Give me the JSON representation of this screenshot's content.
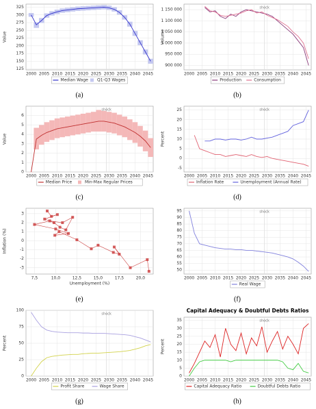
{
  "chart_data": [
    {
      "type": "line",
      "caption": "(a)",
      "ylabel": "Value",
      "grid": true,
      "annotation": {
        "text": "shock",
        "x": 2029
      },
      "xlim": [
        1998,
        2047
      ],
      "xticks": [
        2000,
        2005,
        2010,
        2015,
        2020,
        2025,
        2030,
        2035,
        2040,
        2045
      ],
      "ylim": [
        122,
        335
      ],
      "yticks": [
        125,
        150,
        175,
        200,
        225,
        250,
        275,
        300,
        325
      ],
      "x": [
        2000,
        2002,
        2004,
        2006,
        2008,
        2010,
        2012,
        2014,
        2016,
        2018,
        2020,
        2022,
        2024,
        2026,
        2028,
        2030,
        2032,
        2034,
        2036,
        2038,
        2040,
        2042,
        2044,
        2046
      ],
      "series": [
        {
          "name": "Median Wage",
          "color": "#3333cc",
          "values": [
            300,
            268,
            282,
            298,
            305,
            310,
            314,
            316,
            318,
            320,
            321,
            322,
            323,
            324,
            325,
            323,
            318,
            308,
            292,
            270,
            240,
            210,
            180,
            150
          ]
        },
        {
          "name": "Q1-Q3 Wages",
          "color": "#c4c8f0",
          "low": [
            294,
            258,
            274,
            291,
            298,
            303,
            307,
            309,
            311,
            313,
            314,
            315,
            316,
            317,
            318,
            316,
            311,
            301,
            285,
            262,
            232,
            202,
            172,
            142
          ],
          "high": [
            306,
            276,
            290,
            305,
            312,
            317,
            321,
            323,
            325,
            327,
            328,
            329,
            330,
            331,
            332,
            330,
            325,
            315,
            299,
            278,
            248,
            218,
            188,
            158
          ]
        }
      ]
    },
    {
      "type": "line",
      "caption": "(b)",
      "ylabel": "Volume",
      "grid": true,
      "annotation": {
        "text": "shock",
        "x": 2029
      },
      "xlim": [
        1998,
        2047
      ],
      "xticks": [
        2000,
        2005,
        2010,
        2015,
        2020,
        2025,
        2030,
        2035,
        2040,
        2045
      ],
      "ylim": [
        880000,
        1175000
      ],
      "yticks": [
        {
          "value": 900000,
          "label": "900 000"
        },
        {
          "value": 950000,
          "label": "950 000"
        },
        {
          "value": 1000000,
          "label": "1 000 000"
        },
        {
          "value": 1050000,
          "label": "1 050 000"
        },
        {
          "value": 1100000,
          "label": "1 100 000"
        },
        {
          "value": 1150000,
          "label": "1 150 000"
        }
      ],
      "x": [
        2006,
        2008,
        2010,
        2012,
        2014,
        2016,
        2018,
        2020,
        2022,
        2024,
        2026,
        2028,
        2030,
        2032,
        2034,
        2036,
        2038,
        2040,
        2042,
        2044,
        2046
      ],
      "series": [
        {
          "name": "Production",
          "color": "#8a3a7a",
          "values": [
            1160000,
            1140000,
            1145000,
            1120000,
            1110000,
            1130000,
            1120000,
            1140000,
            1150000,
            1145000,
            1140000,
            1135000,
            1130000,
            1120000,
            1100000,
            1080000,
            1060000,
            1040000,
            1010000,
            980000,
            900000
          ]
        },
        {
          "name": "Consumption",
          "color": "#e07090",
          "values": [
            1165000,
            1145000,
            1140000,
            1125000,
            1120000,
            1125000,
            1130000,
            1135000,
            1145000,
            1150000,
            1135000,
            1140000,
            1125000,
            1115000,
            1105000,
            1090000,
            1075000,
            1050000,
            1030000,
            1000000,
            930000
          ]
        }
      ]
    },
    {
      "type": "line",
      "caption": "(c)",
      "ylabel": "Value",
      "grid": true,
      "annotation": {
        "text": "shock",
        "x": 2029
      },
      "xlim": [
        1998,
        2047
      ],
      "xticks": [
        2000,
        2005,
        2010,
        2015,
        2020,
        2025,
        2030,
        2035,
        2040,
        2045
      ],
      "ylim": [
        0,
        7
      ],
      "yticks": [
        0,
        1,
        2,
        3,
        4,
        5,
        6
      ],
      "x": [
        2000,
        2002,
        2004,
        2006,
        2008,
        2010,
        2012,
        2014,
        2016,
        2018,
        2020,
        2022,
        2024,
        2026,
        2028,
        2030,
        2032,
        2034,
        2036,
        2038,
        2040,
        2042,
        2044,
        2046
      ],
      "series": [
        {
          "name": "Median Price",
          "color": "#c03030",
          "values": [
            0,
            3.5,
            3.9,
            4.2,
            4.4,
            4.6,
            4.7,
            4.8,
            4.9,
            5.0,
            5.1,
            5.2,
            5.3,
            5.4,
            5.4,
            5.3,
            5.2,
            5.0,
            4.8,
            4.5,
            4.2,
            3.8,
            3.3,
            2.6
          ]
        },
        {
          "name": "Min-Max Regular Prices",
          "color": "#f4b8b8",
          "low": [
            0,
            2.4,
            2.9,
            3.2,
            3.4,
            3.6,
            3.7,
            3.8,
            3.9,
            4.0,
            4.1,
            4.2,
            4.3,
            4.3,
            4.3,
            4.2,
            4.1,
            3.9,
            3.7,
            3.4,
            3.1,
            2.7,
            2.2,
            1.6
          ],
          "high": [
            0,
            4.7,
            5.0,
            5.3,
            5.5,
            5.7,
            5.8,
            5.9,
            6.0,
            6.1,
            6.2,
            6.3,
            6.4,
            6.6,
            6.5,
            6.4,
            6.3,
            6.1,
            5.9,
            5.6,
            5.3,
            4.9,
            4.4,
            3.6
          ]
        }
      ]
    },
    {
      "type": "line",
      "caption": "(d)",
      "ylabel": "Percent",
      "grid": true,
      "annotation": {
        "text": "shock",
        "x": 2029
      },
      "xlim": [
        1998,
        2047
      ],
      "xticks": [
        2000,
        2005,
        2010,
        2015,
        2020,
        2025,
        2030,
        2035,
        2040,
        2045
      ],
      "ylim": [
        -7,
        27
      ],
      "yticks": [
        -5,
        0,
        5,
        10,
        15,
        20,
        25
      ],
      "x": [
        2000,
        2002,
        2004,
        2006,
        2008,
        2010,
        2012,
        2014,
        2016,
        2018,
        2020,
        2022,
        2024,
        2026,
        2028,
        2030,
        2032,
        2034,
        2036,
        2038,
        2040,
        2042,
        2044,
        2046
      ],
      "series": [
        {
          "name": "Inflation Rate",
          "color": "#e06070",
          "values": [
            null,
            12,
            5,
            4,
            3,
            2,
            2,
            1,
            1.5,
            2,
            1.5,
            1,
            2,
            1,
            0.5,
            1,
            0,
            -0.5,
            -1,
            -1.5,
            -2,
            -2.5,
            -3,
            -4
          ]
        },
        {
          "name": "Unemployment (Annual Rate)",
          "color": "#6060dd",
          "values": [
            null,
            null,
            null,
            9,
            9,
            10,
            10,
            9.5,
            10,
            10,
            9.5,
            10,
            11,
            10,
            10,
            10.5,
            11,
            12,
            13,
            14,
            17,
            18,
            19,
            25
          ]
        }
      ]
    },
    {
      "type": "scatter",
      "caption": "(e)",
      "xlabel": "Unemployment (%)",
      "ylabel": "Inflation (%)",
      "grid": true,
      "xlim": [
        6.5,
        21.5
      ],
      "xticks": [
        {
          "value": 7.5,
          "label": "7,5"
        },
        {
          "value": 10,
          "label": "10,0"
        },
        {
          "value": 12.5,
          "label": "12,5"
        },
        {
          "value": 15,
          "label": "15,0"
        },
        {
          "value": 17.5,
          "label": "17,5"
        },
        {
          "value": 20,
          "label": "20,0"
        }
      ],
      "ylim": [
        -3.7,
        3.6
      ],
      "yticks": [
        -3,
        -2,
        -1,
        0,
        1,
        2,
        3
      ],
      "x": [
        9.0,
        9.5,
        10.2,
        8.7,
        9.8,
        10.5,
        11.2,
        12.0,
        10.8,
        9.3,
        7.5,
        10.0,
        11.5,
        9.9,
        10.4,
        12.5,
        14.2,
        15.0,
        16.8,
        17.5,
        16.9,
        18.8,
        20.8,
        21.0
      ],
      "series": [
        {
          "color": "#cc4444",
          "values": [
            3.3,
            2.7,
            2.9,
            2.4,
            2.0,
            1.5,
            1.2,
            2.6,
            2.0,
            2.2,
            1.8,
            1.3,
            0.8,
            0.6,
            1.0,
            0.1,
            -0.9,
            -0.5,
            -1.3,
            -1.5,
            -0.7,
            -3.0,
            -2.1,
            -3.4
          ]
        }
      ]
    },
    {
      "type": "line",
      "caption": "(f)",
      "grid": true,
      "annotation": {
        "text": "shock",
        "x": 2029
      },
      "xlim": [
        1998,
        2047
      ],
      "xticks": [
        2000,
        2005,
        2010,
        2015,
        2020,
        2025,
        2030,
        2035,
        2040,
        2045
      ],
      "ylim": [
        47,
        97
      ],
      "yticks": [
        50,
        55,
        60,
        65,
        70,
        75,
        80,
        85,
        90,
        95
      ],
      "x": [
        2000,
        2002,
        2004,
        2006,
        2008,
        2010,
        2012,
        2014,
        2016,
        2018,
        2020,
        2022,
        2024,
        2026,
        2028,
        2030,
        2032,
        2034,
        2036,
        2038,
        2040,
        2042,
        2044,
        2046
      ],
      "series": [
        {
          "name": "Real Wage",
          "color": "#8080dd",
          "values": [
            95,
            78,
            70,
            69,
            68,
            67,
            66.5,
            66,
            66,
            65.5,
            65.5,
            65,
            65,
            64.5,
            64,
            63.5,
            63,
            62,
            61,
            60,
            58.5,
            56,
            53,
            49
          ]
        }
      ]
    },
    {
      "type": "line",
      "caption": "(g)",
      "ylabel": "Percent",
      "grid": true,
      "annotation": {
        "text": "shock",
        "x": 2029
      },
      "xlim": [
        1998,
        2047
      ],
      "xticks": [
        2000,
        2005,
        2010,
        2015,
        2020,
        2025,
        2030,
        2035,
        2040,
        2045
      ],
      "ylim": [
        0,
        100
      ],
      "yticks": [
        0,
        25,
        50,
        75,
        100
      ],
      "x": [
        2000,
        2002,
        2004,
        2006,
        2008,
        2010,
        2012,
        2014,
        2016,
        2018,
        2020,
        2022,
        2024,
        2026,
        2028,
        2030,
        2032,
        2034,
        2036,
        2038,
        2040,
        2042,
        2044,
        2046
      ],
      "series": [
        {
          "name": "Profit Share",
          "color": "#d2d24a",
          "values": [
            0,
            12,
            22,
            28,
            30,
            31,
            32,
            32.5,
            33,
            33,
            34,
            34.5,
            35,
            35,
            35.5,
            36,
            36.5,
            37,
            38,
            39,
            41,
            43,
            46,
            48
          ]
        },
        {
          "name": "Wage Share",
          "color": "#a9a0e0",
          "values": [
            97,
            85,
            75,
            70,
            68,
            67,
            66.5,
            66,
            66,
            66,
            65.5,
            65.5,
            65,
            65,
            65,
            64.5,
            64,
            63.5,
            63,
            62,
            60,
            58,
            55,
            52
          ]
        }
      ]
    },
    {
      "type": "line",
      "caption": "(h)",
      "title": "Capital Adequacy & Doubtful Debts Ratios",
      "ylabel": "Percent",
      "grid": true,
      "annotation": {
        "text": "shock",
        "x": 2029
      },
      "xlim": [
        1998,
        2047
      ],
      "xticks": [
        2000,
        2005,
        2010,
        2015,
        2020,
        2025,
        2030,
        2035,
        2040,
        2045
      ],
      "ylim": [
        0,
        37
      ],
      "yticks": [
        0,
        5,
        10,
        15,
        20,
        25,
        30,
        35
      ],
      "x": [
        2000,
        2002,
        2004,
        2006,
        2008,
        2010,
        2012,
        2014,
        2016,
        2018,
        2020,
        2022,
        2024,
        2026,
        2028,
        2030,
        2032,
        2034,
        2036,
        2038,
        2040,
        2042,
        2044,
        2046
      ],
      "series": [
        {
          "name": "Capital Adequacy Ratio",
          "color": "#dd2222",
          "values": [
            2,
            8,
            15,
            22,
            18,
            26,
            12,
            30,
            20,
            16,
            27,
            14,
            24,
            19,
            31,
            15,
            22,
            28,
            17,
            25,
            20,
            14,
            30,
            33
          ]
        },
        {
          "name": "Doubtful Debts Ratio",
          "color": "#44cc44",
          "values": [
            0,
            5,
            9,
            10,
            10,
            10,
            10,
            10,
            9,
            10,
            10,
            10,
            10,
            10,
            10,
            10,
            10,
            10,
            9,
            5,
            4,
            8,
            3,
            2
          ]
        }
      ]
    }
  ]
}
